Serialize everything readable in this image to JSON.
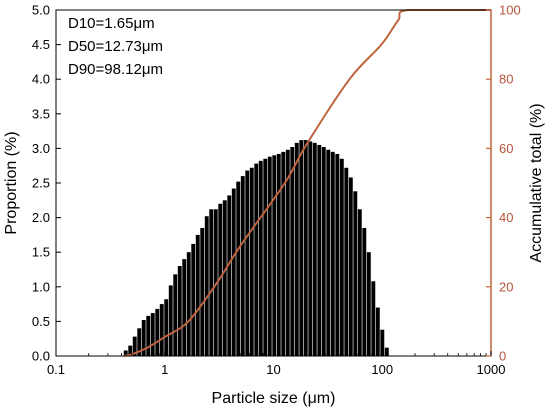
{
  "chart_data": {
    "type": "bar",
    "xlabel": "Particle size (μm)",
    "ylabel": "Proportion (%)",
    "y2label": "Accumulative total (%)",
    "xscale": "log",
    "xlim": [
      0.1,
      1000
    ],
    "ylim": [
      0,
      5.0
    ],
    "y2lim": [
      0,
      100
    ],
    "x_ticks": [
      "0.1",
      "1",
      "10",
      "100",
      "1000"
    ],
    "y_ticks": [
      "0.0",
      "0.5",
      "1.0",
      "1.5",
      "2.0",
      "2.5",
      "3.0",
      "3.5",
      "4.0",
      "4.5",
      "5.0"
    ],
    "y2_ticks": [
      "0",
      "20",
      "40",
      "60",
      "80",
      "100"
    ],
    "annotations": [
      "D10=1.65μm",
      "D50=12.73μm",
      "D90=98.12μm"
    ],
    "bar_color": "#000000",
    "line_color": "#c0643f",
    "bins": {
      "x_start": 0.42,
      "x_ratio": 1.1,
      "values": [
        0.08,
        0.15,
        0.28,
        0.4,
        0.52,
        0.58,
        0.62,
        0.68,
        0.75,
        0.82,
        1.02,
        1.18,
        1.3,
        1.4,
        1.5,
        1.62,
        1.75,
        1.85,
        2.02,
        2.12,
        2.12,
        2.2,
        2.25,
        2.32,
        2.42,
        2.52,
        2.6,
        2.68,
        2.72,
        2.78,
        2.82,
        2.85,
        2.88,
        2.9,
        2.92,
        2.95,
        2.98,
        3.02,
        3.08,
        3.12,
        3.12,
        3.1,
        3.08,
        3.05,
        3.02,
        2.98,
        2.95,
        2.92,
        2.85,
        2.72,
        2.58,
        2.38,
        2.12,
        1.85,
        1.5,
        1.08,
        0.7,
        0.38,
        0.12
      ]
    },
    "cumulative": {
      "x": [
        0.42,
        0.5,
        0.7,
        1.0,
        1.65,
        3,
        5,
        12.73,
        20,
        50,
        98.12,
        140,
        175,
        1000
      ],
      "y": [
        0,
        0.5,
        2.5,
        5.5,
        10,
        21,
        32,
        50,
        61,
        80,
        90,
        97,
        100,
        100
      ]
    }
  }
}
